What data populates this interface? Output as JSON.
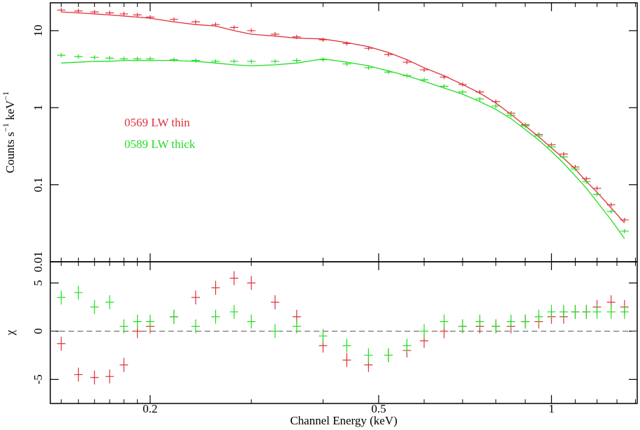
{
  "chart_data": [
    {
      "type": "spectrum",
      "xlog": true,
      "ylog": true,
      "ylabel": [
        "Counts s",
        "−1",
        " keV",
        "−1"
      ],
      "xlim": [
        0.134,
        1.41
      ],
      "xticks": [
        0.2,
        0.5,
        1
      ],
      "xminorticks": [
        0.14,
        0.15,
        0.16,
        0.17,
        0.18,
        0.19,
        0.3,
        0.4,
        0.6,
        0.7,
        0.8,
        0.9,
        1.1,
        1.2,
        1.3,
        1.4
      ],
      "ylim": [
        0.01,
        23
      ],
      "yticks": [
        0.01,
        0.1,
        1,
        10
      ],
      "x": [
        0.14,
        0.15,
        0.16,
        0.17,
        0.18,
        0.19,
        0.2,
        0.22,
        0.24,
        0.26,
        0.28,
        0.3,
        0.33,
        0.36,
        0.4,
        0.44,
        0.48,
        0.52,
        0.56,
        0.6,
        0.65,
        0.7,
        0.75,
        0.8,
        0.85,
        0.9,
        0.95,
        1.0,
        1.05,
        1.1,
        1.15,
        1.2,
        1.27,
        1.34
      ],
      "series": [
        {
          "name": "0569 LW thin",
          "color": "#e0303a",
          "values": [
            18.5,
            18,
            17.5,
            17,
            16.5,
            16,
            15,
            14,
            13,
            12,
            11,
            10,
            9,
            8.3,
            7.6,
            6.8,
            5.9,
            4.9,
            3.9,
            3.1,
            2.5,
            2.0,
            1.6,
            1.2,
            0.85,
            0.6,
            0.45,
            0.33,
            0.25,
            0.17,
            0.12,
            0.09,
            0.055,
            0.035
          ],
          "model": [
            17.5,
            17,
            16.5,
            16,
            15.5,
            15,
            14.5,
            13,
            12,
            11.5,
            10,
            9,
            8.5,
            8,
            7.8,
            7,
            6.2,
            5.2,
            4.2,
            3.3,
            2.6,
            2.0,
            1.55,
            1.15,
            0.82,
            0.58,
            0.42,
            0.3,
            0.22,
            0.16,
            0.11,
            0.08,
            0.05,
            0.032
          ]
        },
        {
          "name": "0589 LW thick",
          "color": "#22dd22",
          "values": [
            4.8,
            4.6,
            4.5,
            4.4,
            4.3,
            4.3,
            4.3,
            4.2,
            4.1,
            4.0,
            4.0,
            4.0,
            4.0,
            4.1,
            4.2,
            3.7,
            3.3,
            2.9,
            2.6,
            2.3,
            1.9,
            1.6,
            1.3,
            1.05,
            0.8,
            0.58,
            0.43,
            0.31,
            0.23,
            0.16,
            0.11,
            0.075,
            0.045,
            0.025
          ],
          "model": [
            3.8,
            3.9,
            4.0,
            4.0,
            4.1,
            4.1,
            4.1,
            4.1,
            4.0,
            3.8,
            3.6,
            3.5,
            3.6,
            3.8,
            4.3,
            3.9,
            3.5,
            3.0,
            2.6,
            2.2,
            1.8,
            1.5,
            1.2,
            0.95,
            0.72,
            0.52,
            0.38,
            0.27,
            0.19,
            0.13,
            0.09,
            0.06,
            0.035,
            0.02
          ]
        }
      ]
    },
    {
      "type": "residual",
      "xlog": true,
      "ylog": false,
      "ylabel": [
        "χ"
      ],
      "xlabel": "Channel Energy (keV)",
      "xlim": [
        0.134,
        1.41
      ],
      "xticks": [
        0.2,
        0.5,
        1
      ],
      "xminorticks": [
        0.14,
        0.15,
        0.16,
        0.17,
        0.18,
        0.19,
        0.3,
        0.4,
        0.6,
        0.7,
        0.8,
        0.9,
        1.1,
        1.2,
        1.3,
        1.4
      ],
      "ylim": [
        -7.5,
        7.2
      ],
      "yticks": [
        -5,
        0,
        5
      ],
      "hline": 0,
      "x": [
        0.14,
        0.15,
        0.16,
        0.17,
        0.18,
        0.19,
        0.2,
        0.22,
        0.24,
        0.26,
        0.28,
        0.3,
        0.33,
        0.36,
        0.4,
        0.44,
        0.48,
        0.52,
        0.56,
        0.6,
        0.65,
        0.7,
        0.75,
        0.8,
        0.85,
        0.9,
        0.95,
        1.0,
        1.05,
        1.1,
        1.15,
        1.2,
        1.27,
        1.34
      ],
      "series": [
        {
          "color": "#e0303a",
          "values": [
            -1.3,
            -4.5,
            -4.8,
            -4.7,
            -3.5,
            0,
            0.5,
            1.5,
            3.5,
            4.5,
            5.5,
            5,
            3,
            1.5,
            -1.5,
            -3,
            -3.5,
            -2.5,
            -2,
            -1,
            0,
            0.5,
            0.5,
            0.5,
            0.5,
            1,
            1,
            1.5,
            1.5,
            2,
            2,
            2.5,
            3,
            2.5
          ]
        },
        {
          "color": "#22dd22",
          "values": [
            3.5,
            4,
            2.5,
            3,
            0.5,
            1,
            1,
            1.5,
            0.5,
            1.5,
            2,
            1,
            0,
            0.5,
            -0.5,
            -1.5,
            -2.5,
            -2.5,
            -1.5,
            0,
            1,
            0.5,
            1,
            0.5,
            1,
            1,
            1.5,
            2,
            2,
            2,
            2,
            2,
            2,
            2
          ]
        }
      ]
    }
  ]
}
